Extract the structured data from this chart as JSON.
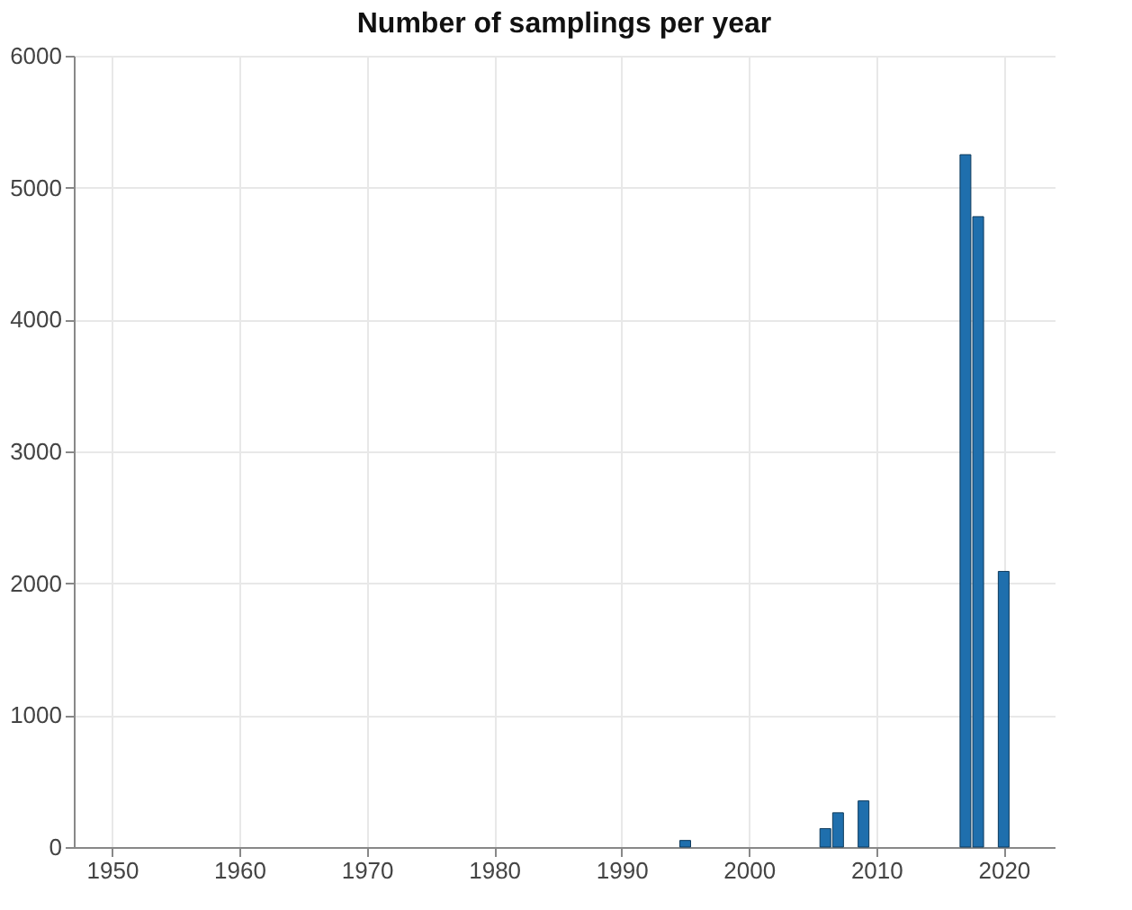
{
  "chart_data": {
    "type": "bar",
    "title": "Number of samplings per year",
    "x": [
      1995,
      2006,
      2007,
      2009,
      2017,
      2018,
      2020
    ],
    "values": [
      50,
      140,
      260,
      350,
      5250,
      4780,
      2090
    ],
    "color": "#1f6fad",
    "xlim": [
      1947,
      2024
    ],
    "xticks": [
      1950,
      1960,
      1970,
      1980,
      1990,
      2000,
      2010,
      2020
    ],
    "ylim": [
      0,
      6000
    ],
    "yticks": [
      0,
      1000,
      2000,
      3000,
      4000,
      5000,
      6000
    ],
    "grid": true
  }
}
